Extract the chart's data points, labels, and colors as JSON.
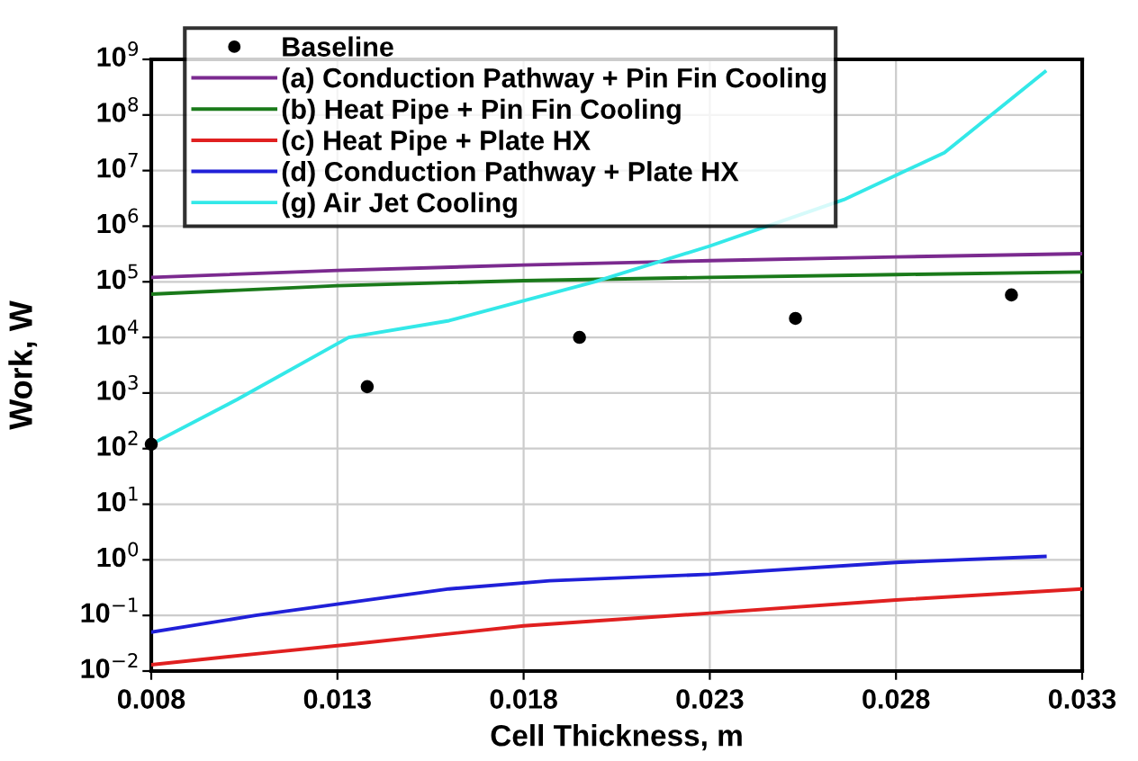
{
  "chart_data": {
    "type": "line",
    "xlabel": "Cell Thickness, m",
    "ylabel": "Work, W",
    "log": "y",
    "grid": true,
    "legend": "top left",
    "xlim": [
      0.008,
      0.033
    ],
    "xticks": [
      0.008,
      0.013,
      0.018,
      0.023,
      0.028,
      0.033
    ],
    "ylim": [
      0.01,
      1000000000
    ],
    "yticks": [
      {
        "value": 0.01,
        "label": "10$^{−2}$"
      },
      {
        "value": 0.1,
        "label": "10$^{−1}$"
      },
      {
        "value": 1,
        "label": "10$^{0}$"
      },
      {
        "value": 10,
        "label": "10$^{1}$"
      },
      {
        "value": 100,
        "label": "10$^{2}$"
      },
      {
        "value": 1000,
        "label": "10$^{3}$"
      },
      {
        "value": 10000,
        "label": "10$^{4}$"
      },
      {
        "value": 100000,
        "label": "10$^{5}$"
      },
      {
        "value": 1000000,
        "label": "10$^{6}$"
      },
      {
        "value": 10000000,
        "label": "10$^{7}$"
      },
      {
        "value": 100000000,
        "label": "10$^{8}$"
      },
      {
        "value": 1000000000,
        "label": "10$^{9}$"
      }
    ],
    "series": [
      {
        "name": "Baseline",
        "type": "scatter",
        "marker": "circle",
        "color": "#000000",
        "x": [
          0.008,
          0.0138,
          0.0195,
          0.0253,
          0.0311
        ],
        "values": [
          120,
          1300,
          10000,
          22000,
          58000
        ]
      },
      {
        "name": "(a) Conduction Pathway + Pin Fin Cooling",
        "color": "#7b2a8f",
        "x": [
          0.008,
          0.013,
          0.018,
          0.023,
          0.028,
          0.033
        ],
        "values": [
          120000,
          160000,
          200000,
          240000,
          280000,
          320000
        ]
      },
      {
        "name": "(b) Heat Pipe + Pin Fin Cooling",
        "color": "#1a7a1a",
        "x": [
          0.008,
          0.013,
          0.018,
          0.023,
          0.028,
          0.033
        ],
        "values": [
          60000,
          85000,
          105000,
          120000,
          135000,
          150000
        ]
      },
      {
        "name": "(c) Heat Pipe + Plate HX",
        "color": "#e02020",
        "x": [
          0.008,
          0.011,
          0.0133,
          0.018,
          0.023,
          0.028,
          0.033
        ],
        "values": [
          0.013,
          0.021,
          0.03,
          0.065,
          0.11,
          0.19,
          0.3
        ]
      },
      {
        "name": "(d) Conduction Pathway + Plate HX",
        "color": "#2020d8",
        "x": [
          0.008,
          0.0108,
          0.0133,
          0.016,
          0.0187,
          0.023,
          0.028,
          0.032
        ],
        "values": [
          0.05,
          0.1,
          0.17,
          0.3,
          0.42,
          0.55,
          0.9,
          1.15
        ]
      },
      {
        "name": "(g) Air Jet Cooling",
        "color": "#33e8e8",
        "x": [
          0.008,
          0.0103,
          0.0133,
          0.016,
          0.0199,
          0.023,
          0.0266,
          0.0293,
          0.032
        ],
        "values": [
          120,
          760,
          10000,
          20000,
          100000,
          440000,
          3000000,
          21000000,
          600000000
        ]
      }
    ]
  }
}
